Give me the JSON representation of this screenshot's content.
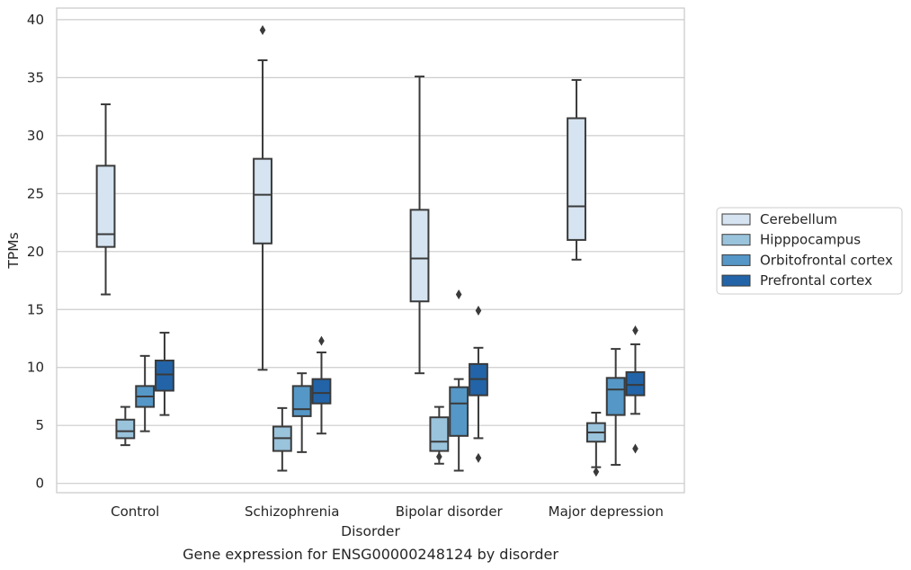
{
  "chart_data": {
    "type": "boxplot",
    "xlabel": "Disorder",
    "ylabel": "TPMs",
    "caption": "Gene expression for ENSG00000248124 by disorder",
    "ylim": [
      -0.8,
      41
    ],
    "yticks": [
      0,
      5,
      10,
      15,
      20,
      25,
      30,
      35,
      40
    ],
    "grid": "horizontal",
    "legend_position": "right",
    "categories": [
      "Control",
      "Schizophrenia",
      "Bipolar disorder",
      "Major depression"
    ],
    "series": [
      {
        "name": "Cerebellum",
        "color": "#d6e4f1",
        "boxes": [
          {
            "whisker_low": 16.3,
            "q1": 20.4,
            "median": 21.5,
            "q3": 27.4,
            "whisker_high": 32.7,
            "outliers": []
          },
          {
            "whisker_low": 9.8,
            "q1": 20.7,
            "median": 24.9,
            "q3": 28.0,
            "whisker_high": 36.5,
            "outliers": [
              39.1
            ]
          },
          {
            "whisker_low": 9.5,
            "q1": 15.7,
            "median": 19.4,
            "q3": 23.6,
            "whisker_high": 35.1,
            "outliers": []
          },
          {
            "whisker_low": 19.3,
            "q1": 21.0,
            "median": 23.9,
            "q3": 31.5,
            "whisker_high": 34.8,
            "outliers": []
          }
        ]
      },
      {
        "name": "Hipppocampus",
        "color": "#9ac3dc",
        "boxes": [
          {
            "whisker_low": 3.3,
            "q1": 3.9,
            "median": 4.5,
            "q3": 5.5,
            "whisker_high": 6.6,
            "outliers": []
          },
          {
            "whisker_low": 1.1,
            "q1": 2.8,
            "median": 3.9,
            "q3": 4.9,
            "whisker_high": 6.5,
            "outliers": []
          },
          {
            "whisker_low": 1.7,
            "q1": 2.8,
            "median": 3.6,
            "q3": 5.7,
            "whisker_high": 6.6,
            "outliers": [
              2.3
            ]
          },
          {
            "whisker_low": 1.4,
            "q1": 3.6,
            "median": 4.4,
            "q3": 5.2,
            "whisker_high": 6.1,
            "outliers": [
              1.0
            ]
          }
        ]
      },
      {
        "name": "Orbitofrontal cortex",
        "color": "#5597c6",
        "boxes": [
          {
            "whisker_low": 4.5,
            "q1": 6.6,
            "median": 7.5,
            "q3": 8.4,
            "whisker_high": 11.0,
            "outliers": []
          },
          {
            "whisker_low": 2.7,
            "q1": 5.8,
            "median": 6.4,
            "q3": 8.4,
            "whisker_high": 9.5,
            "outliers": []
          },
          {
            "whisker_low": 1.1,
            "q1": 4.1,
            "median": 6.9,
            "q3": 8.3,
            "whisker_high": 9.0,
            "outliers": [
              16.3
            ]
          },
          {
            "whisker_low": 1.6,
            "q1": 5.9,
            "median": 8.1,
            "q3": 9.1,
            "whisker_high": 11.6,
            "outliers": []
          }
        ]
      },
      {
        "name": "Prefrontal cortex",
        "color": "#2264a7",
        "boxes": [
          {
            "whisker_low": 5.9,
            "q1": 8.0,
            "median": 9.4,
            "q3": 10.6,
            "whisker_high": 13.0,
            "outliers": []
          },
          {
            "whisker_low": 4.3,
            "q1": 6.9,
            "median": 7.8,
            "q3": 9.0,
            "whisker_high": 11.3,
            "outliers": [
              12.3
            ]
          },
          {
            "whisker_low": 3.9,
            "q1": 7.6,
            "median": 9.0,
            "q3": 10.3,
            "whisker_high": 11.7,
            "outliers": [
              14.9,
              2.2
            ]
          },
          {
            "whisker_low": 6.0,
            "q1": 7.6,
            "median": 8.5,
            "q3": 9.6,
            "whisker_high": 12.0,
            "outliers": [
              13.2,
              3.0
            ]
          }
        ]
      }
    ]
  }
}
